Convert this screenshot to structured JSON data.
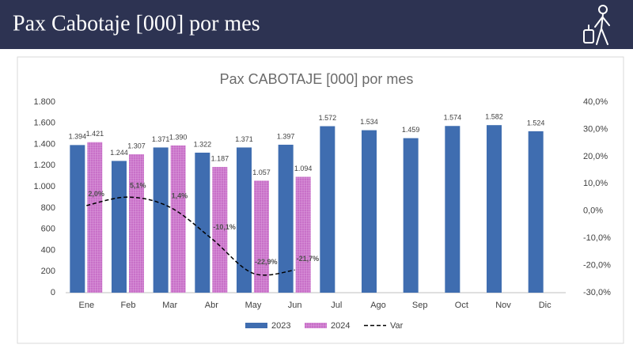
{
  "header": {
    "title": "Pax Cabotaje [000] por mes"
  },
  "chart_data": {
    "type": "bar",
    "title": "Pax CABOTAJE [000] por mes",
    "categories": [
      "Ene",
      "Feb",
      "Mar",
      "Abr",
      "May",
      "Jun",
      "Jul",
      "Ago",
      "Sep",
      "Oct",
      "Nov",
      "Dic"
    ],
    "series": [
      {
        "name": "2023",
        "type": "bar",
        "color": "#3f6db0",
        "values": [
          1394,
          1244,
          1371,
          1322,
          1371,
          1397,
          1572,
          1534,
          1459,
          1574,
          1582,
          1524
        ],
        "value_labels": [
          "1.394",
          "1.244",
          "1.371",
          "1.322",
          "1.371",
          "1.397",
          "1.572",
          "1.534",
          "1.459",
          "1.574",
          "1.582",
          "1.524"
        ]
      },
      {
        "name": "2024",
        "type": "bar",
        "color": "#c870c8",
        "values": [
          1421,
          1307,
          1390,
          1187,
          1057,
          1094,
          null,
          null,
          null,
          null,
          null,
          null
        ],
        "value_labels": [
          "1.421",
          "1.307",
          "1.390",
          "1.187",
          "1.057",
          "1.094",
          null,
          null,
          null,
          null,
          null,
          null
        ]
      },
      {
        "name": "Var",
        "type": "line",
        "axis": "y2",
        "color": "#000000",
        "values": [
          2.0,
          5.1,
          1.4,
          -10.1,
          -22.9,
          -21.7,
          null,
          null,
          null,
          null,
          null,
          null
        ],
        "value_labels": [
          "2,0%",
          "5,1%",
          "1,4%",
          "-10,1%",
          "-22,9%",
          "-21,7%",
          null,
          null,
          null,
          null,
          null,
          null
        ]
      }
    ],
    "ylim": [
      0,
      1800
    ],
    "yticks": [
      0,
      200,
      400,
      600,
      800,
      {
        "value": 1000,
        "label": "1.000"
      },
      {
        "value": 1200,
        "label": "1.200"
      },
      {
        "value": 1400,
        "label": "1.400"
      },
      {
        "value": 1600,
        "label": "1.600"
      },
      {
        "value": 1800,
        "label": "1.800"
      }
    ],
    "y2lim": [
      -30,
      40
    ],
    "y2ticks": [
      {
        "value": -30,
        "label": "-30,0%"
      },
      {
        "value": -20,
        "label": "-20,0%"
      },
      {
        "value": -10,
        "label": "-10,0%"
      },
      {
        "value": 0,
        "label": "0,0%"
      },
      {
        "value": 10,
        "label": "10,0%"
      },
      {
        "value": 20,
        "label": "20,0%"
      },
      {
        "value": 30,
        "label": "30,0%"
      },
      {
        "value": 40,
        "label": "40,0%"
      }
    ],
    "grid": false,
    "legend": "bottom"
  }
}
